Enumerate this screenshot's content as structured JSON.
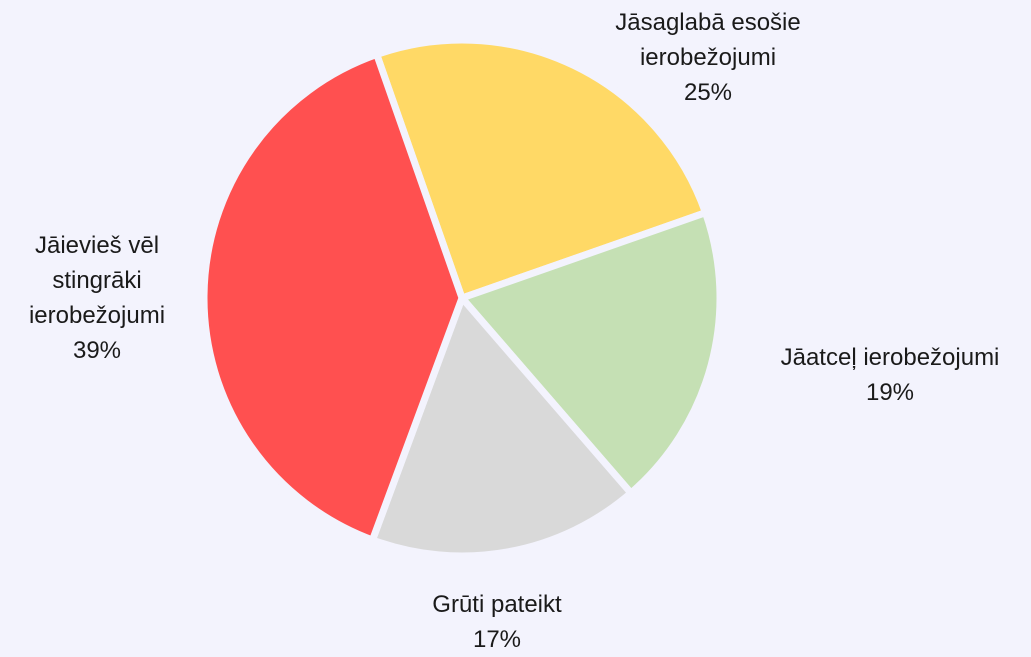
{
  "chart_data": {
    "type": "pie",
    "categories": [
      "Jāsaglabā esošie ierobežojumi",
      "Jāatceļ ierobežojumi",
      "Grūti pateikt",
      "Jāievieš vēl stingrāki ierobežojumi"
    ],
    "values": [
      25,
      19,
      17,
      39
    ],
    "value_labels": [
      "25%",
      "19%",
      "17%",
      "39%"
    ],
    "colors": [
      "#ffd966",
      "#c5e0b4",
      "#d9d9d9",
      "#ff5050"
    ]
  }
}
